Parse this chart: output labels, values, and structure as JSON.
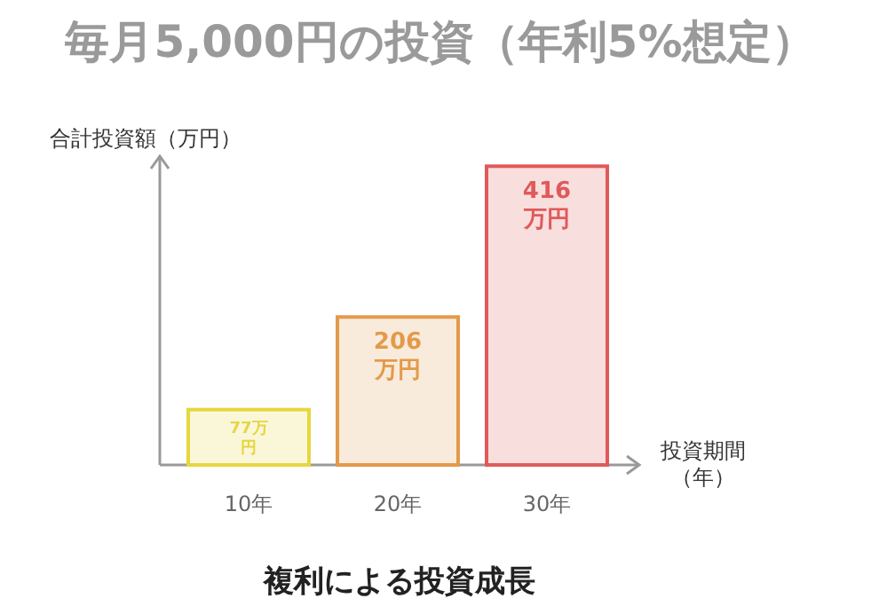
{
  "chart_data": {
    "type": "bar",
    "title": "毎月5,000円の投資（年利5%想定）",
    "ylabel": "合計投資額（万円）",
    "xlabel": "投資期間（年）",
    "categories": [
      "10年",
      "20年",
      "30年"
    ],
    "values": [
      77,
      206,
      416
    ],
    "colors": [
      "#e6d640",
      "#e39a4a",
      "#e05a5a"
    ],
    "value_labels": [
      "77万円",
      "206万円",
      "416万円"
    ],
    "ylim": [
      0,
      430
    ],
    "annotations": [
      "複利による投資成長"
    ]
  }
}
